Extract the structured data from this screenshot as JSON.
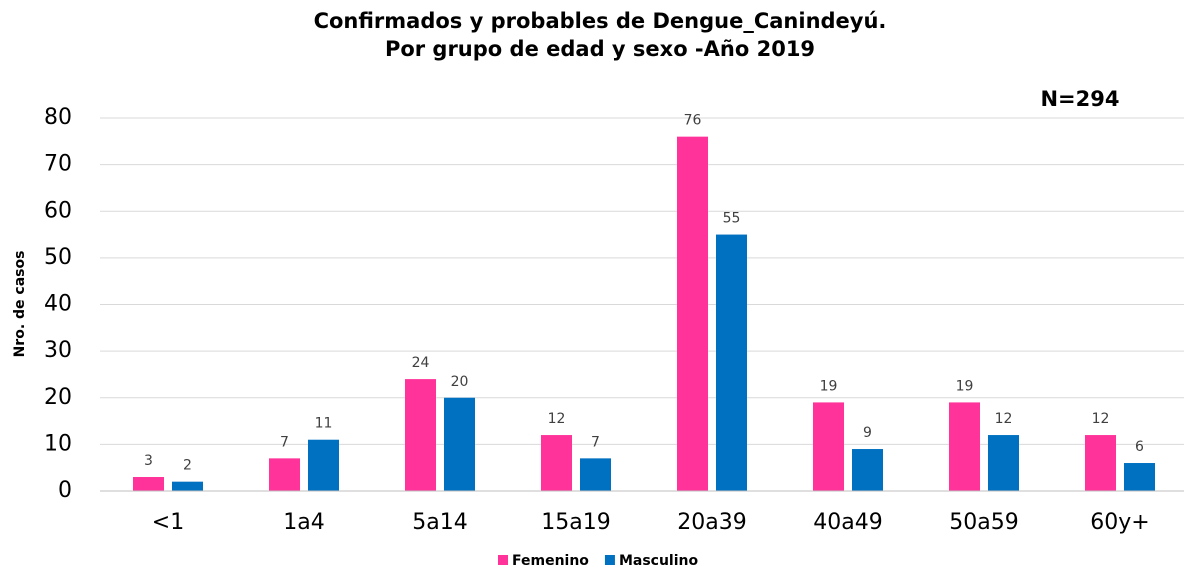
{
  "chart_data": {
    "type": "bar",
    "title": [
      "Confirmados y probables de Dengue_Canindeyú.",
      "Por grupo de edad y sexo -Año 2019"
    ],
    "annotation": "N=294",
    "y_label": "Nro. de casos",
    "categories": [
      "<1",
      "1a4",
      "5a14",
      "15a19",
      "20a39",
      "40a49",
      "50a59",
      "60y+"
    ],
    "series": [
      {
        "name": "Femenino",
        "color": "#ff3399",
        "values": [
          3,
          7,
          24,
          12,
          76,
          19,
          19,
          12
        ]
      },
      {
        "name": "Masculino",
        "color": "#0070c0",
        "values": [
          2,
          11,
          20,
          7,
          55,
          9,
          12,
          6
        ]
      }
    ],
    "ylim": [
      0,
      80
    ],
    "yticks": [
      0,
      10,
      20,
      30,
      40,
      50,
      60,
      70,
      80
    ],
    "grid": true,
    "legend": "bottom"
  }
}
